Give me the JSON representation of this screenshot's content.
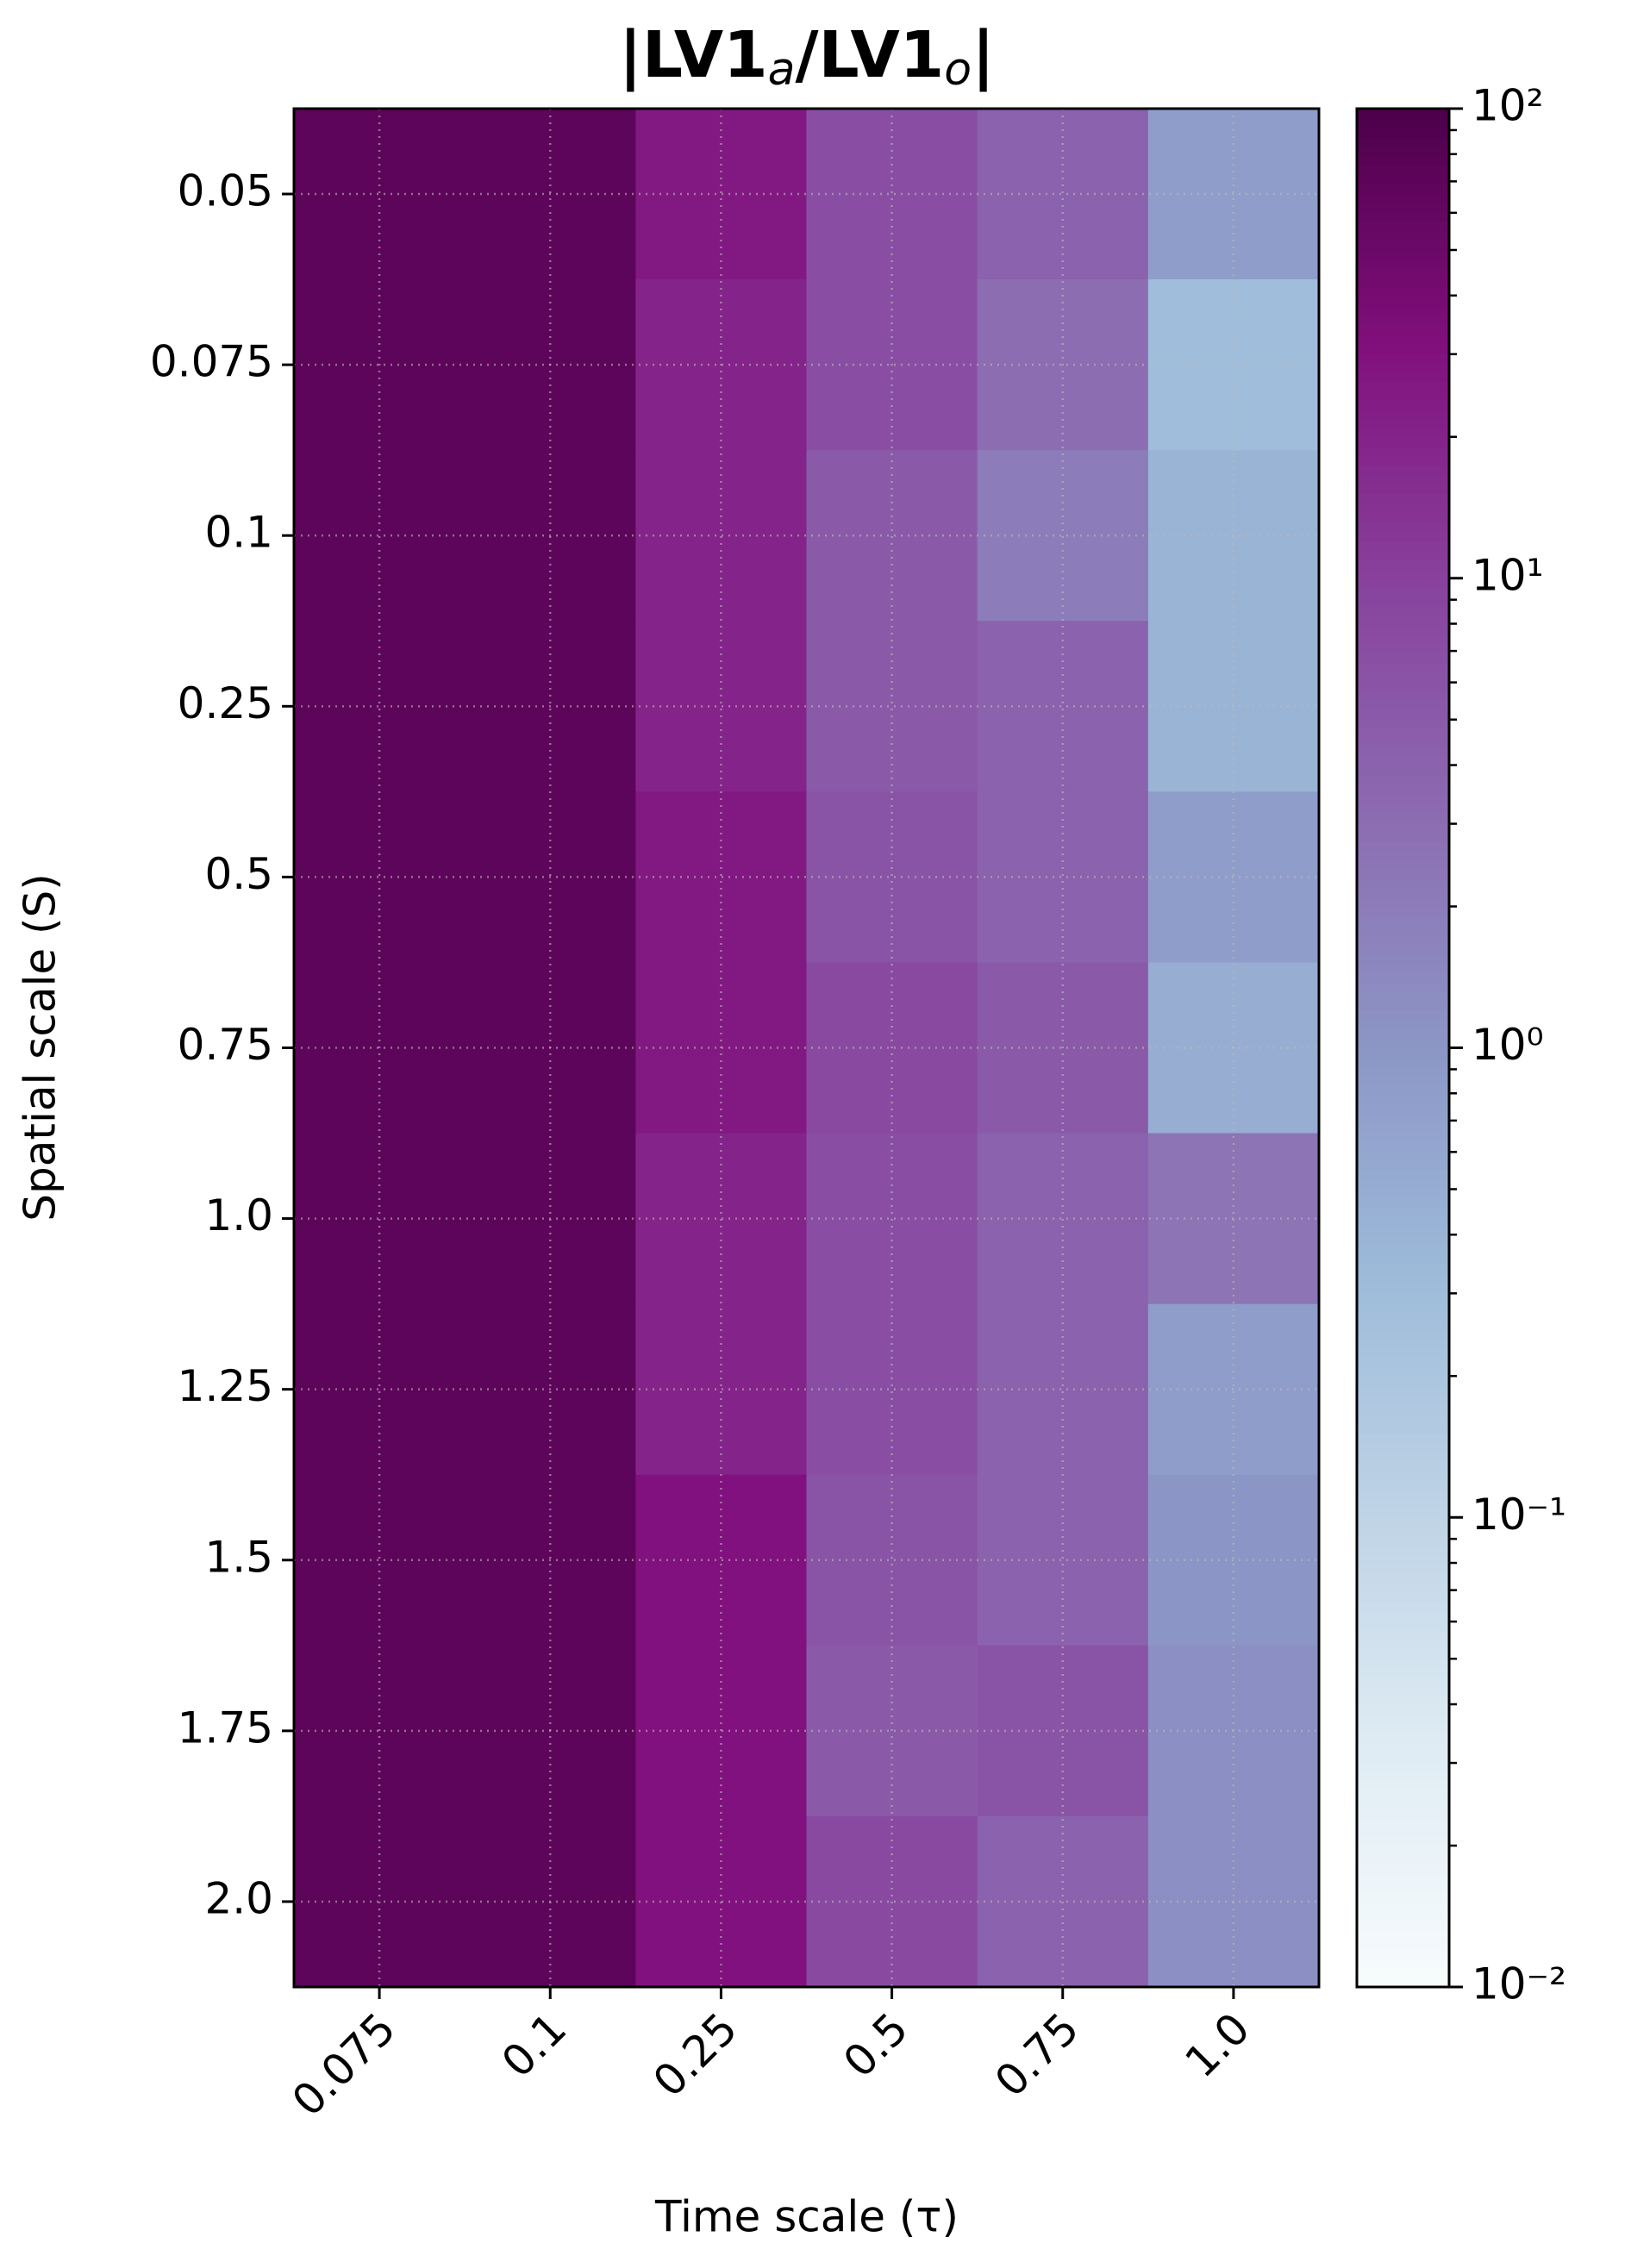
{
  "chart_data": {
    "type": "heatmap",
    "title": [
      "|LV1",
      "a",
      "/LV1",
      "o",
      "|"
    ],
    "x_label": "Time scale (τ)",
    "y_label": "Spatial scale (S)",
    "categories": [
      "0.075",
      "0.1",
      "0.25",
      "0.5",
      "0.75",
      "1.0"
    ],
    "y_categories": [
      "0.05",
      "0.075",
      "0.1",
      "0.25",
      "0.5",
      "0.75",
      "1.0",
      "1.25",
      "1.5",
      "1.75",
      "2.0"
    ],
    "values": [
      [
        70,
        70,
        25,
        7,
        4,
        0.8
      ],
      [
        70,
        70,
        20,
        7,
        3,
        0.3
      ],
      [
        70,
        70,
        20,
        5,
        2,
        0.4
      ],
      [
        70,
        70,
        20,
        5,
        4,
        0.4
      ],
      [
        70,
        70,
        25,
        6,
        4,
        0.8
      ],
      [
        70,
        70,
        25,
        8,
        5,
        0.5
      ],
      [
        70,
        70,
        20,
        7,
        4,
        2.5
      ],
      [
        70,
        70,
        20,
        7,
        4,
        0.8
      ],
      [
        70,
        70,
        30,
        6,
        4,
        1
      ],
      [
        70,
        70,
        30,
        5,
        6,
        1.2
      ],
      [
        70,
        70,
        30,
        8,
        4,
        1.2
      ]
    ],
    "colormap": "BuPu",
    "log_scale": true,
    "clim": [
      0.01,
      100
    ],
    "cticks": [
      {
        "value": 0.01,
        "label": "10⁻²"
      },
      {
        "value": 0.1,
        "label": "10⁻¹"
      },
      {
        "value": 1,
        "label": "10⁰"
      },
      {
        "value": 10,
        "label": "10¹"
      },
      {
        "value": 100,
        "label": "10²"
      }
    ],
    "grid": true
  }
}
